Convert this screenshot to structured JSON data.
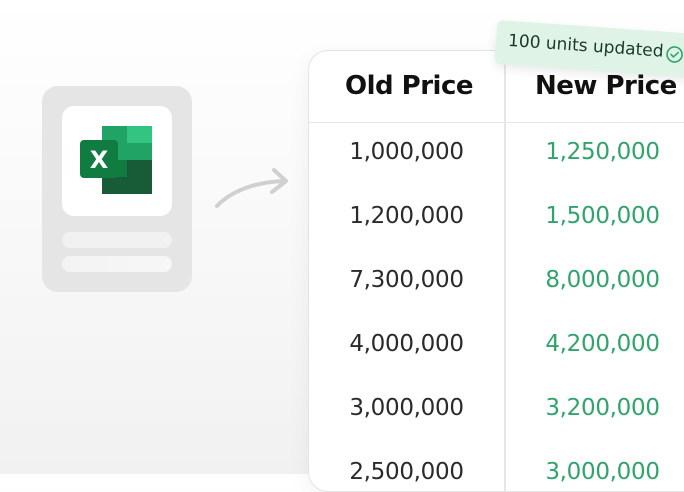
{
  "toast": {
    "text": "100 units updated"
  },
  "table": {
    "headers": {
      "old": "Old Price",
      "new": "New Price"
    },
    "rows": [
      {
        "old": "1,000,000",
        "new": "1,250,000"
      },
      {
        "old": "1,200,000",
        "new": "1,500,000"
      },
      {
        "old": "7,300,000",
        "new": "8,000,000"
      },
      {
        "old": "4,000,000",
        "new": "4,200,000"
      },
      {
        "old": "3,000,000",
        "new": "3,200,000"
      },
      {
        "old": "2,500,000",
        "new": "3,000,000"
      }
    ]
  },
  "colors": {
    "new_price": "#2fa56a",
    "toast_bg": "#dff3e6",
    "excel_green": "#21a366"
  },
  "icons": {
    "file": "excel-icon",
    "arrow": "curved-arrow-icon",
    "status": "check-circle-icon"
  }
}
